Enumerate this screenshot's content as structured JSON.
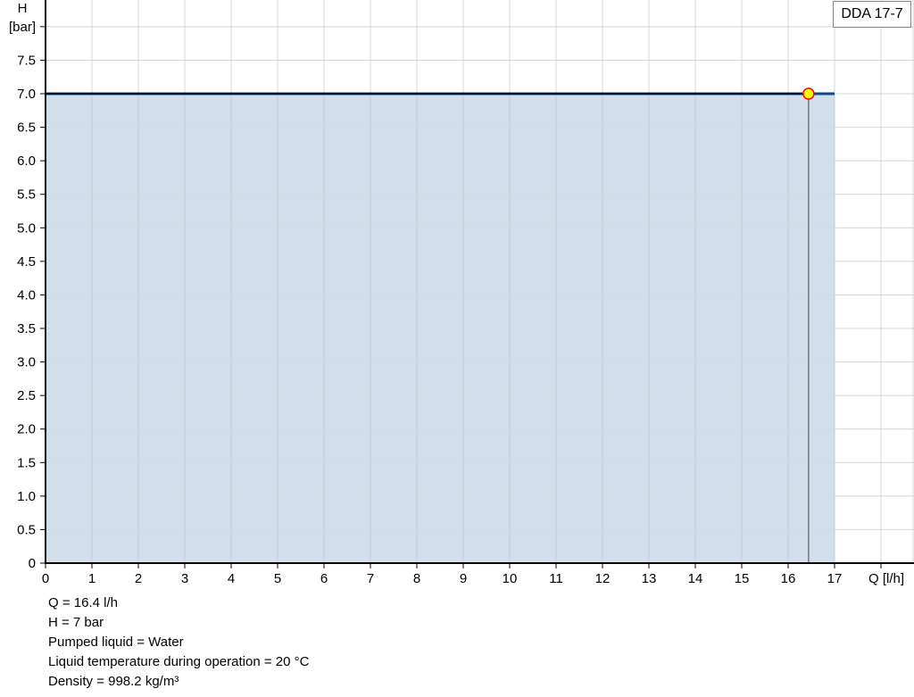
{
  "chart_data": {
    "type": "area",
    "title": "",
    "xlabel": "Q [l/h]",
    "ylabel_line1": "H",
    "ylabel_line2": "[bar]",
    "xlim": [
      0,
      18
    ],
    "ylim": [
      0,
      8
    ],
    "x_ticks": [
      0,
      1,
      2,
      3,
      4,
      5,
      6,
      7,
      8,
      9,
      10,
      11,
      12,
      13,
      14,
      15,
      16,
      17
    ],
    "y_ticks": [
      "0",
      "0.5",
      "1.0",
      "1.5",
      "2.0",
      "2.5",
      "3.0",
      "3.5",
      "4.0",
      "4.5",
      "5.0",
      "5.5",
      "6.0",
      "6.5",
      "7.0",
      "7.5"
    ],
    "grid": true,
    "series": [
      {
        "name": "DDA 17-7",
        "x": [
          0,
          17
        ],
        "y": [
          7.0,
          7.0
        ],
        "color": "#0b4a8a",
        "fill": "#d0dce8"
      }
    ],
    "operating_point": {
      "x": 16.44,
      "y": 7.0,
      "color": "#ffff00",
      "border": "#ff0000"
    },
    "legend": {
      "label": "DDA 17-7",
      "placement": "top-right"
    }
  },
  "info": [
    "Q = 16.4 l/h",
    "H = 7 bar",
    "Pumped liquid = Water",
    "Liquid temperature during operation = 20 °C",
    "Density = 998.2 kg/m³"
  ]
}
